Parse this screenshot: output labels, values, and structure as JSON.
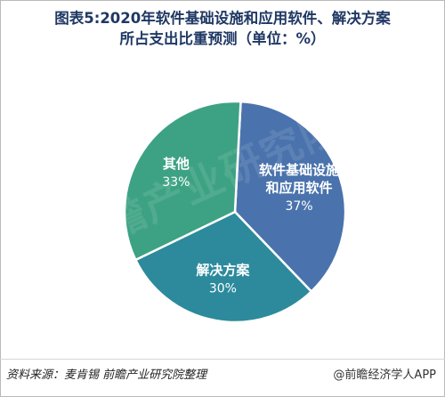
{
  "title_line1": "图表5:2020年软件基础设施和应用软件、解决方案",
  "title_line2": "所占支出比重预测（单位：%）",
  "chart_data": {
    "type": "pie",
    "slices": [
      {
        "label_lines": [
          "软件基础设施",
          "和应用软件"
        ],
        "value": 37,
        "value_text": "37%",
        "color": "#4a73ad"
      },
      {
        "label_lines": [
          "解决方案"
        ],
        "value": 30,
        "value_text": "30%",
        "color": "#2c8a9c"
      },
      {
        "label_lines": [
          "其他"
        ],
        "value": 33,
        "value_text": "33%",
        "color": "#3da283"
      }
    ]
  },
  "watermark": "前瞻产业研究院",
  "footer": {
    "source": "资料来源：麦肯锡  前瞻产业研究院整理",
    "brand": "@前瞻经济学人APP"
  }
}
